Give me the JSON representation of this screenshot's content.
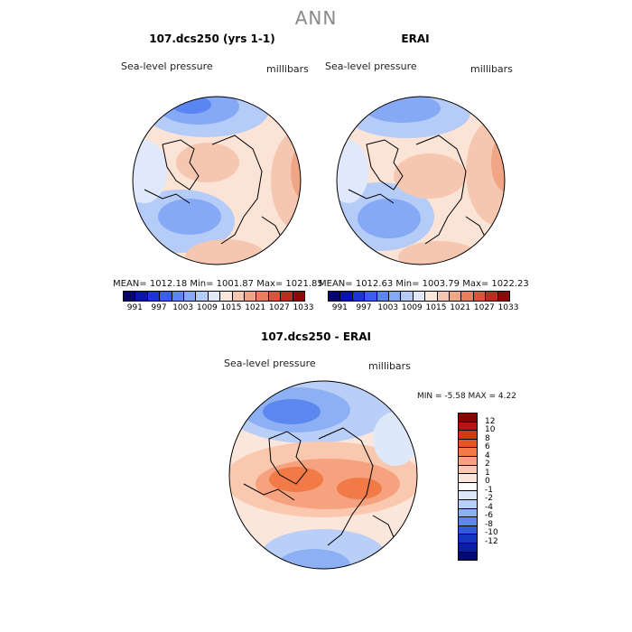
{
  "season_title": "ANN",
  "panel1": {
    "title": "107.dcs250 (yrs 1-1)",
    "variable": "Sea-level pressure",
    "units": "millibars",
    "stats": "MEAN= 1012.18   Min= 1001.87   Max= 1021.85"
  },
  "panel2": {
    "title": "ERAI",
    "variable": "Sea-level pressure",
    "units": "millibars",
    "stats": "MEAN= 1012.63   Min= 1003.79   Max= 1022.23"
  },
  "panel3": {
    "title": "107.dcs250 - ERAI",
    "variable": "Sea-level pressure",
    "units": "millibars",
    "stats": "MIN =   -5.58  MAX =    4.22"
  },
  "colorbar_abs": {
    "labels": [
      "991",
      "997",
      "1003",
      "1009",
      "1015",
      "1021",
      "1027",
      "1033"
    ],
    "colors": [
      "#08046e",
      "#0a14a8",
      "#1c37d6",
      "#3a5df0",
      "#5a86f4",
      "#86a9f6",
      "#b6ccf8",
      "#dfe9fb",
      "#fbe7dc",
      "#f6c7b0",
      "#f0a587",
      "#e97d5c",
      "#d9553a",
      "#b92d1f",
      "#8b0a0a"
    ]
  },
  "colorbar_diff": {
    "labels": [
      "12",
      "10",
      "8",
      "6",
      "4",
      "2",
      "1",
      "0",
      "-1",
      "-2",
      "-4",
      "-6",
      "-8",
      "-10",
      "-12"
    ],
    "colors": [
      "#8b0000",
      "#b3160f",
      "#d43717",
      "#ea5424",
      "#f27a47",
      "#f6a27e",
      "#f9c8ae",
      "#fbe6dc",
      "#ffffff",
      "#dde9fb",
      "#b9cff8",
      "#8db0f4",
      "#5c87ef",
      "#3258e0",
      "#1434c2",
      "#0a1ea0",
      "#050a6e"
    ]
  }
}
